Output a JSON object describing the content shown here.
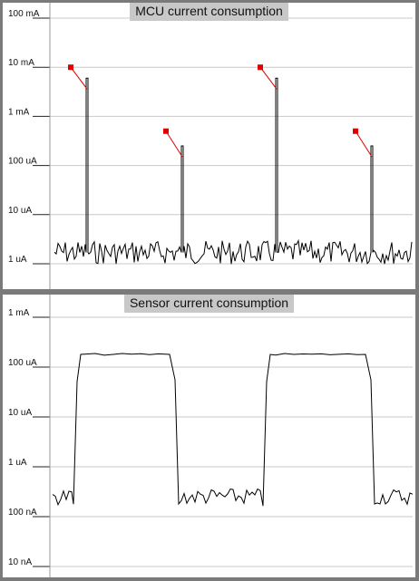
{
  "charts": [
    {
      "id": "mcu",
      "title": "MCU current consumption",
      "scale": "log",
      "y_ticks": [
        {
          "value": 0.1,
          "label": "100 mA"
        },
        {
          "value": 0.01,
          "label": "10 mA"
        },
        {
          "value": 0.001,
          "label": "1 mA"
        },
        {
          "value": 0.0001,
          "label": "100 uA"
        },
        {
          "value": 1e-05,
          "label": "10 uA"
        },
        {
          "value": 1e-06,
          "label": "1 uA"
        }
      ]
    },
    {
      "id": "sensor",
      "title": "Sensor current consumption",
      "scale": "log",
      "y_ticks": [
        {
          "value": 0.001,
          "label": "1 mA"
        },
        {
          "value": 0.0001,
          "label": "100 uA"
        },
        {
          "value": 1e-05,
          "label": "10 uA"
        },
        {
          "value": 1e-06,
          "label": "1 uA"
        },
        {
          "value": 1e-07,
          "label": "100 nA"
        },
        {
          "value": 1e-08,
          "label": "10 nA"
        }
      ]
    }
  ],
  "chart_data": [
    {
      "type": "line",
      "title": "MCU current consumption",
      "xlabel": "",
      "ylabel": "",
      "y_scale": "log",
      "ylim_A": [
        6e-07,
        0.1
      ],
      "grid": true,
      "baseline_A": 1.7e-06,
      "spikes": [
        {
          "index": 1,
          "peak_A": 0.006,
          "marker_A": 0.01
        },
        {
          "index": 2,
          "peak_A": 0.00025,
          "marker_A": 0.0005
        },
        {
          "index": 3,
          "peak_A": 0.006,
          "marker_A": 0.01
        },
        {
          "index": 4,
          "peak_A": 0.00025,
          "marker_A": 0.0005
        }
      ],
      "series": [
        {
          "values_A": [
            1.7e-06,
            1.3e-06,
            2.4e-06,
            1.5e-06,
            0.006,
            1.8e-06,
            1.2e-06,
            2.6e-06,
            1.6e-06,
            1.4e-06,
            2.1e-06,
            0.00025,
            1.7e-06,
            1.3e-06,
            2.2e-06,
            1.5e-06,
            1.9e-06,
            1.1e-06,
            0.006,
            1.8e-06,
            2.4e-06,
            1.4e-06,
            1.6e-06,
            2e-06,
            0.00025,
            1.5e-06,
            2.3e-06,
            1.2e-06,
            1.7e-06
          ]
        }
      ],
      "markers_color": "#e00000"
    },
    {
      "type": "line",
      "title": "Sensor current consumption",
      "xlabel": "",
      "ylabel": "",
      "y_scale": "log",
      "ylim_A": [
        1e-08,
        0.001
      ],
      "grid": true,
      "series": [
        {
          "values_A": [
            1.8e-07,
            1.4e-07,
            2e-07,
            1.6e-07,
            0.00018,
            0.00018,
            0.00018,
            0.00018,
            0.00018,
            1.7e-07,
            1.2e-07,
            2.3e-07,
            1.9e-07,
            2.2e-07,
            1.6e-07,
            0.00018,
            0.00018,
            0.00018,
            0.00018,
            0.00018,
            1.6e-07,
            2e-07,
            1.5e-07,
            2.1e-07
          ]
        }
      ],
      "high_A": 0.00018,
      "low_A": 1.8e-07
    }
  ]
}
